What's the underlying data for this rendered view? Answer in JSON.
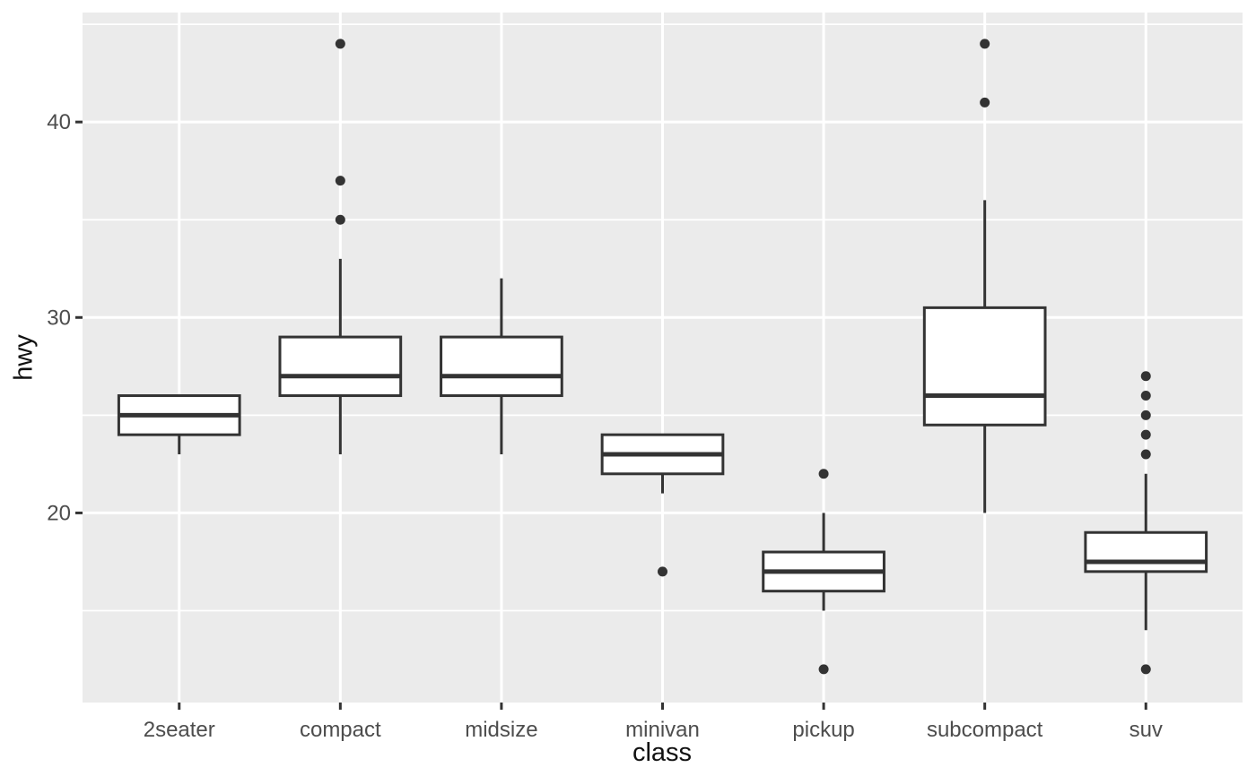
{
  "chart_data": {
    "type": "boxplot",
    "title": "",
    "xlabel": "class",
    "ylabel": "hwy",
    "categories": [
      "2seater",
      "compact",
      "midsize",
      "minivan",
      "pickup",
      "subcompact",
      "suv"
    ],
    "series": [
      {
        "category": "2seater",
        "whisker_low": 23,
        "q1": 24,
        "median": 25,
        "q3": 26,
        "whisker_high": 26,
        "outliers": []
      },
      {
        "category": "compact",
        "whisker_low": 23,
        "q1": 26,
        "median": 27,
        "q3": 29,
        "whisker_high": 33,
        "outliers": [
          35,
          37,
          44
        ]
      },
      {
        "category": "midsize",
        "whisker_low": 23,
        "q1": 26,
        "median": 27,
        "q3": 29,
        "whisker_high": 32,
        "outliers": []
      },
      {
        "category": "minivan",
        "whisker_low": 21,
        "q1": 22,
        "median": 23,
        "q3": 24,
        "whisker_high": 24,
        "outliers": [
          17
        ]
      },
      {
        "category": "pickup",
        "whisker_low": 15,
        "q1": 16,
        "median": 17,
        "q3": 18,
        "whisker_high": 20,
        "outliers": [
          12,
          22
        ]
      },
      {
        "category": "subcompact",
        "whisker_low": 20,
        "q1": 24.5,
        "median": 26,
        "q3": 30.5,
        "whisker_high": 36,
        "outliers": [
          41,
          44
        ]
      },
      {
        "category": "suv",
        "whisker_low": 14,
        "q1": 17,
        "median": 17.5,
        "q3": 19,
        "whisker_high": 22,
        "outliers": [
          12,
          23,
          24,
          25,
          26,
          27
        ]
      }
    ],
    "yticks_major": [
      20,
      30,
      40
    ],
    "yticks_minor": [
      15,
      25,
      35,
      45
    ],
    "ylim": [
      10.3,
      45.6
    ],
    "grid": "on",
    "legend": "none",
    "colors": {
      "panel_background": "#EBEBEB",
      "grid_major": "#FFFFFF",
      "grid_minor": "#FFFFFF",
      "box_stroke": "#333333",
      "box_fill": "#FFFFFF",
      "outlier_fill": "#333333",
      "tick_mark": "#333333",
      "tick_label": "#4D4D4D",
      "axis_title": "#111111",
      "figure_background": "#FFFFFF"
    }
  }
}
